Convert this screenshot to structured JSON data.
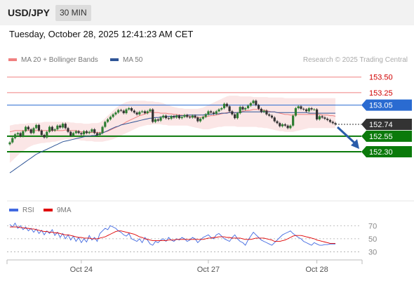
{
  "header": {
    "pair": "USD/JPY",
    "interval": "30 MIN"
  },
  "timestamp": "Tuesday, October 28, 2025 12:41:23 AM CET",
  "legend": {
    "main": [
      {
        "label": "MA 20 + Bollinger Bands",
        "color": "#f08080"
      },
      {
        "label": "MA 50",
        "color": "#2f5597"
      }
    ],
    "rsi": [
      {
        "label": "RSI",
        "color": "#4169e1"
      },
      {
        "label": "9MA",
        "color": "#e00000"
      }
    ],
    "credit": "Research © 2025 Trading Central"
  },
  "colors": {
    "up": "#2e7d32",
    "down": "#333333",
    "resistance": "#f08080",
    "support": "#0b7a0b",
    "pivot": "#2a6bd1",
    "current": "#333333"
  },
  "chart_data": [
    {
      "type": "candlestick",
      "title": "USD/JPY",
      "interval": "30 MIN",
      "ylim": [
        151.6,
        153.7
      ],
      "levels": [
        {
          "label": "153.50",
          "value": 153.5,
          "kind": "resistance"
        },
        {
          "label": "153.25",
          "value": 153.25,
          "kind": "resistance"
        },
        {
          "label": "153.05",
          "value": 153.05,
          "kind": "pivot"
        },
        {
          "label": "152.74",
          "value": 152.74,
          "kind": "current"
        },
        {
          "label": "152.55",
          "value": 152.55,
          "kind": "support"
        },
        {
          "label": "152.30",
          "value": 152.3,
          "kind": "support"
        }
      ],
      "x_ticks": [
        {
          "label": "Oct 24",
          "index": 27
        },
        {
          "label": "Oct 27",
          "index": 75
        },
        {
          "label": "Oct 28",
          "index": 116
        }
      ],
      "close": [
        152.45,
        152.52,
        152.58,
        152.6,
        152.55,
        152.63,
        152.7,
        152.66,
        152.6,
        152.68,
        152.73,
        152.64,
        152.57,
        152.53,
        152.62,
        152.7,
        152.64,
        152.66,
        152.72,
        152.69,
        152.75,
        152.68,
        152.62,
        152.56,
        152.6,
        152.63,
        152.6,
        152.58,
        152.63,
        152.6,
        152.62,
        152.66,
        152.6,
        152.57,
        152.6,
        152.7,
        152.78,
        152.82,
        152.86,
        152.9,
        152.93,
        152.97,
        152.96,
        152.92,
        152.98,
        153.0,
        152.96,
        152.93,
        152.9,
        152.94,
        152.95,
        152.92,
        152.95,
        152.98,
        152.78,
        152.82,
        152.8,
        152.85,
        152.88,
        152.84,
        152.83,
        152.87,
        152.85,
        152.88,
        152.84,
        152.86,
        152.89,
        152.86,
        152.85,
        152.88,
        152.85,
        152.79,
        152.83,
        152.86,
        152.9,
        152.95,
        152.93,
        152.91,
        152.95,
        152.98,
        153.0,
        153.07,
        153.03,
        152.95,
        152.9,
        152.84,
        152.92,
        153.02,
        152.98,
        153.0,
        153.04,
        153.08,
        153.12,
        153.05,
        152.99,
        152.94,
        152.96,
        152.9,
        152.88,
        152.85,
        152.79,
        152.76,
        152.71,
        152.74,
        152.72,
        152.68,
        152.72,
        152.88,
        153.0,
        153.03,
        152.99,
        152.98,
        152.95,
        153.0,
        152.98,
        152.98,
        152.82,
        152.87,
        152.85,
        152.83,
        152.81,
        152.78,
        152.76,
        152.74
      ],
      "ma20": [
        152.62,
        152.63,
        152.64,
        152.64,
        152.64,
        152.64,
        152.64,
        152.64,
        152.64,
        152.64,
        152.64,
        152.64,
        152.64,
        152.64,
        152.64,
        152.64,
        152.64,
        152.64,
        152.64,
        152.64,
        152.64,
        152.65,
        152.64,
        152.64,
        152.64,
        152.64,
        152.63,
        152.62,
        152.62,
        152.61,
        152.61,
        152.61,
        152.61,
        152.61,
        152.61,
        152.61,
        152.62,
        152.63,
        152.65,
        152.67,
        152.69,
        152.71,
        152.73,
        152.75,
        152.78,
        152.8,
        152.82,
        152.84,
        152.86,
        152.88,
        152.89,
        152.91,
        152.92,
        152.94,
        152.93,
        152.93,
        152.93,
        152.92,
        152.92,
        152.92,
        152.91,
        152.91,
        152.9,
        152.9,
        152.89,
        152.89,
        152.88,
        152.88,
        152.87,
        152.86,
        152.85,
        152.85,
        152.85,
        152.86,
        152.86,
        152.87,
        152.88,
        152.88,
        152.89,
        152.9,
        152.91,
        152.92,
        152.93,
        152.93,
        152.93,
        152.93,
        152.93,
        152.94,
        152.95,
        152.96,
        152.96,
        152.97,
        152.98,
        152.98,
        152.98,
        152.97,
        152.97,
        152.96,
        152.95,
        152.94,
        152.94,
        152.93,
        152.92,
        152.91,
        152.9,
        152.9,
        152.89,
        152.89,
        152.9,
        152.9,
        152.9,
        152.9,
        152.9,
        152.9,
        152.9,
        152.9,
        152.9,
        152.9,
        152.89,
        152.89,
        152.89,
        152.88,
        152.88,
        152.87
      ],
      "bb_upper": [
        152.72,
        152.73,
        152.74,
        152.74,
        152.75,
        152.75,
        152.75,
        152.76,
        152.76,
        152.76,
        152.77,
        152.77,
        152.77,
        152.78,
        152.78,
        152.78,
        152.78,
        152.78,
        152.78,
        152.78,
        152.78,
        152.78,
        152.78,
        152.77,
        152.77,
        152.76,
        152.76,
        152.76,
        152.75,
        152.75,
        152.75,
        152.76,
        152.76,
        152.76,
        152.77,
        152.8,
        152.84,
        152.88,
        152.92,
        152.96,
        153.0,
        153.03,
        153.06,
        153.08,
        153.1,
        153.11,
        153.12,
        153.12,
        153.12,
        153.12,
        153.12,
        153.12,
        153.11,
        153.11,
        153.11,
        153.1,
        153.1,
        153.09,
        153.08,
        153.06,
        153.05,
        153.03,
        153.02,
        153.01,
        153.0,
        153.0,
        152.99,
        152.99,
        152.99,
        152.99,
        152.99,
        152.99,
        153.0,
        153.01,
        153.03,
        153.05,
        153.07,
        153.09,
        153.11,
        153.13,
        153.15,
        153.17,
        153.19,
        153.2,
        153.2,
        153.2,
        153.2,
        153.19,
        153.19,
        153.19,
        153.19,
        153.19,
        153.18,
        153.18,
        153.18,
        153.18,
        153.18,
        153.18,
        153.17,
        153.17,
        153.17,
        153.17,
        153.17,
        153.17,
        153.16,
        153.16,
        153.16,
        153.16,
        153.16,
        153.16,
        153.16,
        153.16,
        153.16,
        153.16,
        153.16,
        153.16,
        153.16,
        153.16,
        153.16,
        153.16,
        153.16,
        153.16,
        153.16,
        153.16
      ],
      "bb_lower": [
        152.12,
        152.16,
        152.2,
        152.24,
        152.28,
        152.31,
        152.34,
        152.37,
        152.39,
        152.41,
        152.42,
        152.43,
        152.44,
        152.44,
        152.45,
        152.45,
        152.46,
        152.46,
        152.47,
        152.48,
        152.49,
        152.5,
        152.5,
        152.5,
        152.5,
        152.5,
        152.49,
        152.48,
        152.48,
        152.47,
        152.47,
        152.47,
        152.46,
        152.46,
        152.46,
        152.46,
        152.47,
        152.48,
        152.49,
        152.5,
        152.52,
        152.54,
        152.56,
        152.58,
        152.6,
        152.62,
        152.64,
        152.66,
        152.68,
        152.7,
        152.71,
        152.72,
        152.73,
        152.73,
        152.74,
        152.74,
        152.74,
        152.74,
        152.73,
        152.73,
        152.72,
        152.72,
        152.72,
        152.72,
        152.72,
        152.72,
        152.72,
        152.72,
        152.71,
        152.7,
        152.69,
        152.68,
        152.67,
        152.66,
        152.66,
        152.66,
        152.67,
        152.68,
        152.69,
        152.7,
        152.7,
        152.71,
        152.71,
        152.71,
        152.71,
        152.71,
        152.7,
        152.7,
        152.7,
        152.7,
        152.7,
        152.7,
        152.7,
        152.7,
        152.69,
        152.69,
        152.68,
        152.68,
        152.67,
        152.66,
        152.65,
        152.64,
        152.63,
        152.63,
        152.62,
        152.62,
        152.62,
        152.62,
        152.63,
        152.64,
        152.65,
        152.66,
        152.67,
        152.68,
        152.68,
        152.68,
        152.68,
        152.68,
        152.68,
        152.68,
        152.68,
        152.68,
        152.68,
        152.68
      ],
      "ma50": [
        151.96,
        151.99,
        152.02,
        152.05,
        152.08,
        152.11,
        152.14,
        152.17,
        152.2,
        152.23,
        152.26,
        152.28,
        152.3,
        152.32,
        152.34,
        152.36,
        152.38,
        152.4,
        152.42,
        152.44,
        152.46,
        152.47,
        152.48,
        152.49,
        152.5,
        152.51,
        152.52,
        152.53,
        152.54,
        152.55,
        152.55,
        152.56,
        152.56,
        152.57,
        152.58,
        152.6,
        152.62,
        152.64,
        152.66,
        152.68,
        152.7,
        152.71,
        152.73,
        152.74,
        152.75,
        152.76,
        152.77,
        152.78,
        152.79,
        152.8,
        152.81,
        152.82,
        152.83,
        152.84,
        152.84,
        152.85,
        152.85,
        152.86,
        152.86,
        152.86,
        152.87,
        152.87,
        152.87,
        152.88,
        152.88,
        152.88,
        152.88,
        152.89,
        152.89,
        152.89,
        152.89,
        152.89,
        152.89,
        152.89,
        152.9,
        152.9,
        152.9,
        152.91,
        152.91,
        152.91,
        152.92,
        152.92,
        152.92,
        152.93,
        152.93,
        152.93,
        152.93,
        152.93,
        152.94,
        152.94,
        152.94,
        152.94,
        152.94,
        152.94,
        152.94,
        152.94,
        152.94,
        152.94,
        152.94,
        152.94,
        152.94,
        152.93,
        152.93,
        152.93,
        152.93,
        152.93,
        152.93,
        152.93,
        152.93,
        152.93,
        152.93,
        152.93,
        152.93,
        152.92,
        152.92,
        152.92,
        152.92,
        152.92,
        152.92,
        152.92,
        152.92,
        152.92,
        152.92,
        152.92
      ],
      "forecast": {
        "from": 152.74,
        "to": 152.3
      }
    },
    {
      "type": "line",
      "title": "RSI",
      "ylim": [
        24,
        80
      ],
      "y_ticks": [
        70,
        50,
        30
      ],
      "series": [
        {
          "name": "RSI",
          "values": [
            72,
            68,
            74,
            66,
            70,
            64,
            68,
            62,
            66,
            60,
            65,
            58,
            63,
            56,
            62,
            58,
            64,
            55,
            60,
            52,
            58,
            50,
            56,
            48,
            54,
            46,
            52,
            44,
            50,
            45,
            55,
            48,
            52,
            46,
            58,
            62,
            66,
            64,
            70,
            68,
            66,
            62,
            60,
            56,
            54,
            58,
            50,
            48,
            46,
            50,
            44,
            52,
            48,
            42,
            40,
            46,
            44,
            48,
            50,
            46,
            52,
            48,
            46,
            50,
            48,
            52,
            50,
            46,
            48,
            52,
            50,
            44,
            48,
            52,
            54,
            56,
            52,
            50,
            56,
            58,
            54,
            50,
            48,
            46,
            52,
            56,
            50,
            46,
            44,
            40,
            48,
            54,
            60,
            56,
            52,
            48,
            46,
            44,
            42,
            40,
            44,
            48,
            52,
            56,
            58,
            60,
            62,
            58,
            55,
            52,
            50,
            46,
            44,
            42,
            40,
            44,
            42,
            40,
            40,
            41,
            41,
            42,
            42,
            42
          ]
        },
        {
          "name": "9MA",
          "values": [
            68,
            68,
            68,
            68,
            67,
            67,
            66,
            66,
            65,
            65,
            64,
            63,
            62,
            61,
            61,
            60,
            60,
            59,
            59,
            58,
            57,
            56,
            56,
            55,
            54,
            53,
            52,
            52,
            51,
            51,
            51,
            50,
            50,
            50,
            51,
            52,
            53,
            55,
            57,
            59,
            61,
            62,
            62,
            61,
            60,
            59,
            58,
            57,
            55,
            53,
            52,
            50,
            49,
            48,
            47,
            47,
            47,
            47,
            47,
            47,
            48,
            48,
            48,
            49,
            49,
            49,
            49,
            49,
            49,
            49,
            49,
            49,
            49,
            49,
            50,
            51,
            51,
            52,
            52,
            53,
            53,
            53,
            52,
            52,
            51,
            51,
            51,
            51,
            50,
            49,
            49,
            49,
            50,
            51,
            51,
            51,
            51,
            50,
            49,
            48,
            46,
            46,
            46,
            47,
            48,
            50,
            52,
            54,
            55,
            55,
            55,
            54,
            53,
            52,
            51,
            50,
            48,
            47,
            46,
            45,
            44,
            43,
            43,
            43
          ]
        }
      ]
    }
  ]
}
